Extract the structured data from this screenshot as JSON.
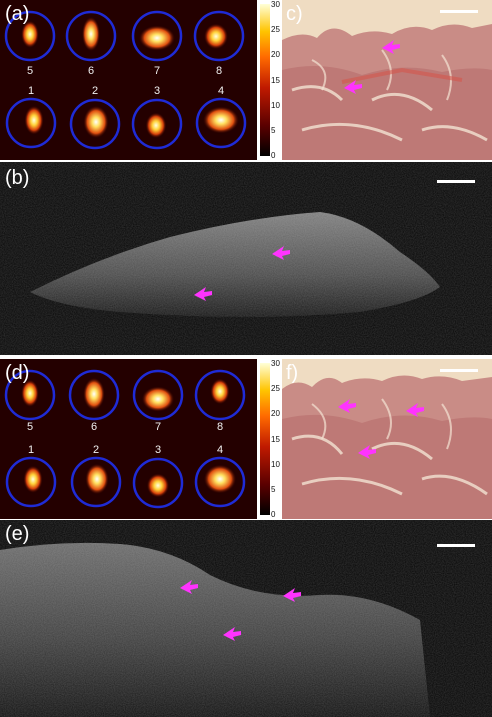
{
  "figure": {
    "panels": {
      "a": {
        "label": "(a)",
        "top_numbers": [
          "5",
          "6",
          "7",
          "8"
        ],
        "bottom_numbers": [
          "1",
          "2",
          "3",
          "4"
        ]
      },
      "b": {
        "label": "(b)"
      },
      "c": {
        "label": "c)"
      },
      "d": {
        "label": "(d)",
        "top_numbers": [
          "5",
          "6",
          "7",
          "8"
        ],
        "bottom_numbers": [
          "1",
          "2",
          "3",
          "4"
        ]
      },
      "e": {
        "label": "(e)"
      },
      "f": {
        "label": "f)"
      }
    },
    "colorbar": {
      "ticks": [
        "30",
        "25",
        "20",
        "15",
        "10",
        "5",
        "0"
      ]
    },
    "colors": {
      "circle": "#1f2bd6",
      "arrow": "#ff33ff",
      "heatmap_bg": "#2a0000",
      "histology_bg": "#e8c9a6",
      "scalebar": "#ffffff"
    }
  }
}
